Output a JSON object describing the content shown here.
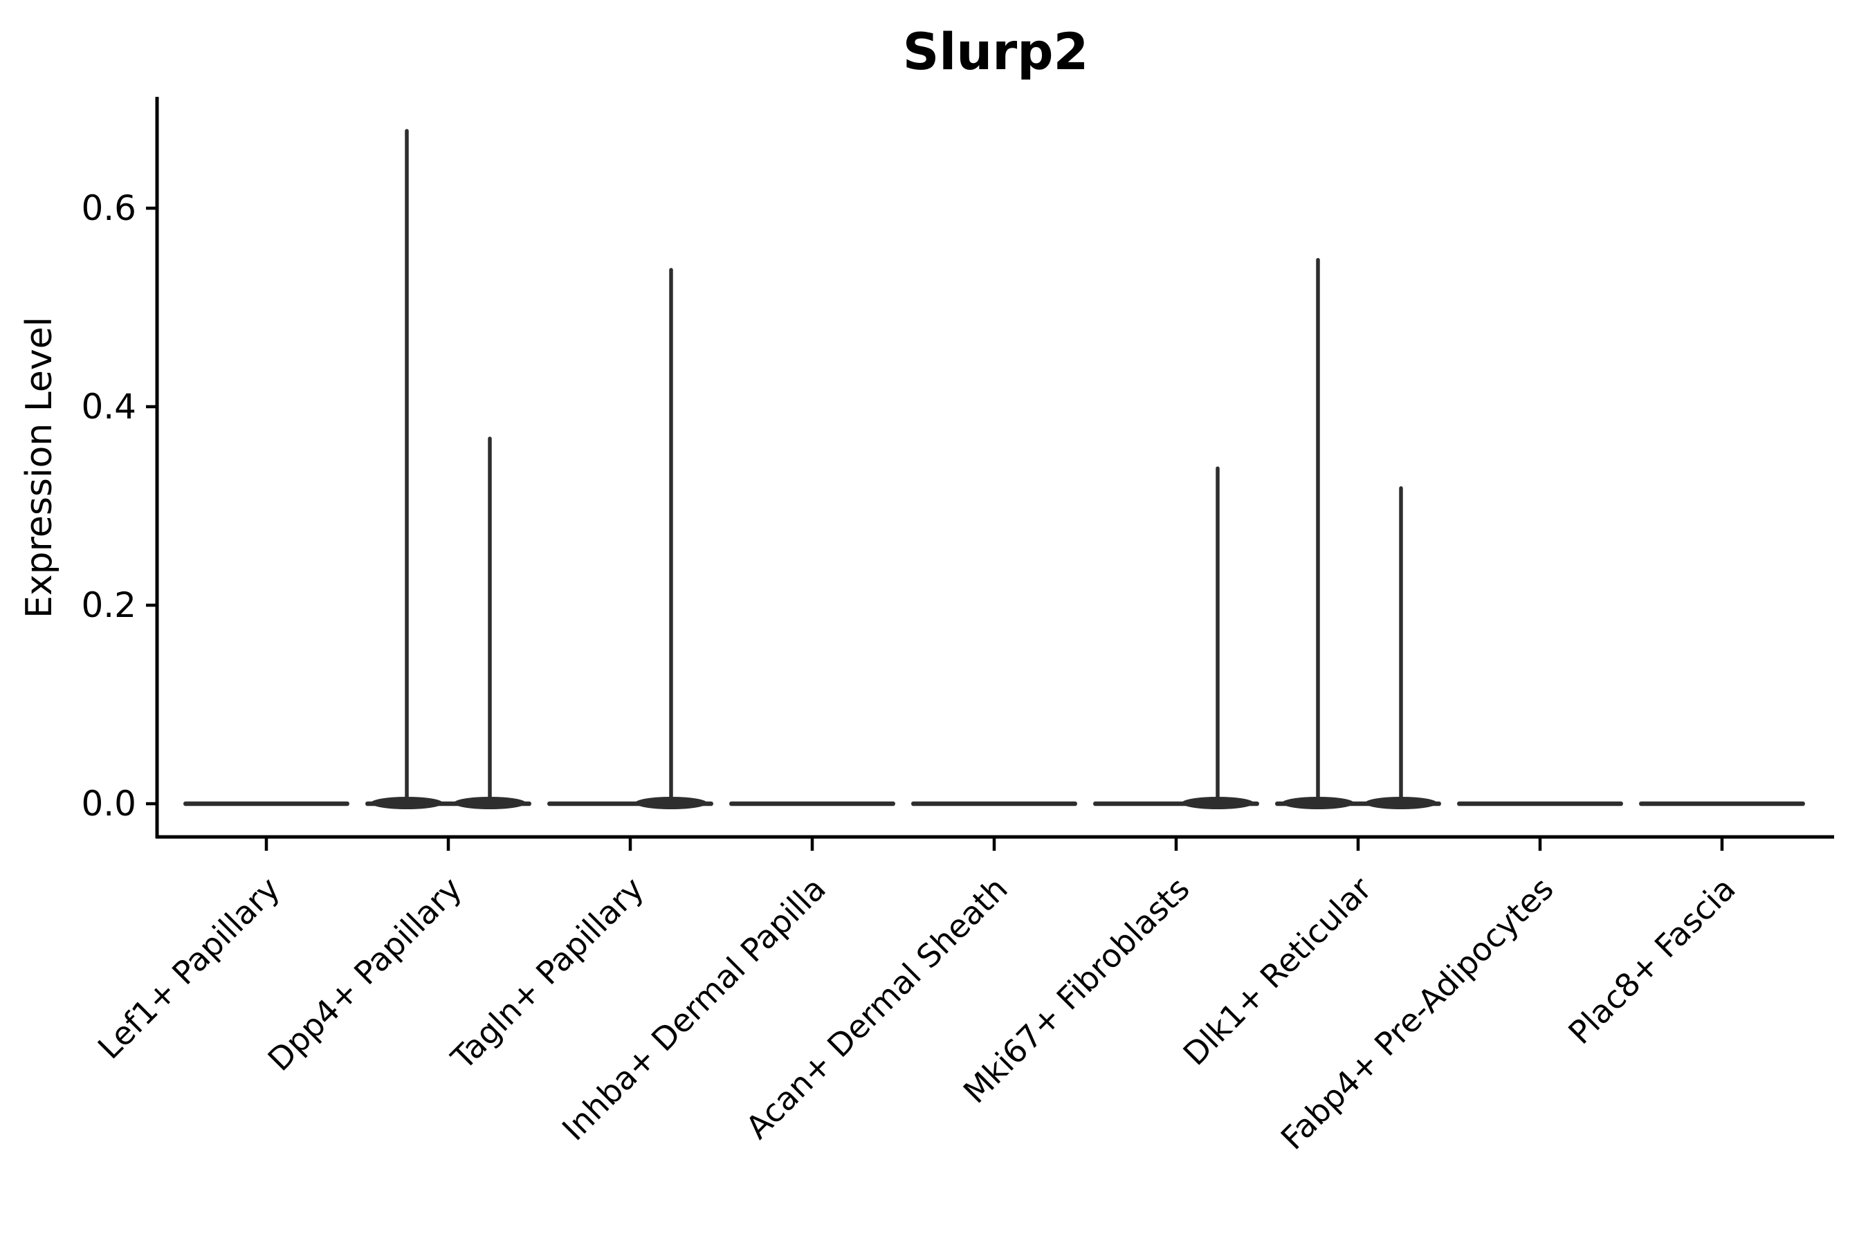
{
  "chart_data": {
    "type": "violin",
    "title": "Slurp2",
    "xlabel": "",
    "ylabel": "Expression Level",
    "yticks": [
      0.0,
      0.2,
      0.4,
      0.6
    ],
    "ylim": [
      0.0,
      0.71
    ],
    "grid": false,
    "legend": "none",
    "categories": [
      "Lef1+ Papillary",
      "Dpp4+ Papillary",
      "Tagln+ Papillary",
      "Inhba+ Dermal Papilla",
      "Acan+ Dermal Sheath",
      "Mki67+ Fibroblasts",
      "Dlk1+ Reticular",
      "Fabp4+ Pre-Adipocytes",
      "Plac8+ Fascia"
    ],
    "violins": [
      {
        "category": "Lef1+ Papillary",
        "base_value": 0.0,
        "spikes": []
      },
      {
        "category": "Dpp4+ Papillary",
        "base_value": 0.0,
        "spikes": [
          {
            "side": "left",
            "dx": -60,
            "value": 0.68
          },
          {
            "side": "right",
            "dx": 60,
            "value": 0.37
          }
        ]
      },
      {
        "category": "Tagln+ Papillary",
        "base_value": 0.0,
        "spikes": [
          {
            "side": "right",
            "dx": 59,
            "value": 0.54
          }
        ]
      },
      {
        "category": "Inhba+ Dermal Papilla",
        "base_value": 0.0,
        "spikes": []
      },
      {
        "category": "Acan+ Dermal Sheath",
        "base_value": 0.0,
        "spikes": []
      },
      {
        "category": "Mki67+ Fibroblasts",
        "base_value": 0.0,
        "spikes": [
          {
            "side": "right",
            "dx": 60,
            "value": 0.34
          }
        ]
      },
      {
        "category": "Dlk1+ Reticular",
        "base_value": 0.0,
        "spikes": [
          {
            "side": "left",
            "dx": -58,
            "value": 0.55
          },
          {
            "side": "right",
            "dx": 62,
            "value": 0.32
          }
        ]
      },
      {
        "category": "Fabp4+ Pre-Adipocytes",
        "base_value": 0.0,
        "spikes": []
      },
      {
        "category": "Plac8+ Fascia",
        "base_value": 0.0,
        "spikes": []
      }
    ],
    "colors": {
      "violin": "#2e2e2e",
      "axis": "#000000",
      "text": "#000000",
      "background": "#ffffff"
    }
  }
}
